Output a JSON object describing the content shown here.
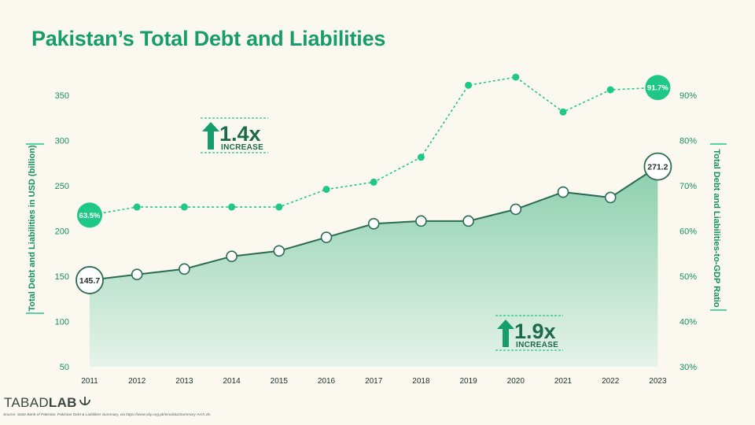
{
  "chart_data": {
    "type": "line",
    "title": "Pakistan’s Total Debt and Liabilities",
    "categories": [
      "2011",
      "2012",
      "2013",
      "2014",
      "2015",
      "2016",
      "2017",
      "2018",
      "2019",
      "2020",
      "2021",
      "2022",
      "2023"
    ],
    "series": [
      {
        "name": "Total Debt and Liabilities in USD (billion)",
        "axis": "left",
        "style": "area-line",
        "values": [
          145.7,
          152,
          158,
          172,
          178,
          193,
          208,
          211,
          211,
          224,
          243,
          237,
          271.2
        ]
      },
      {
        "name": "Total Debt and Liabilities-to-GDP Ratio",
        "axis": "right",
        "style": "dashed-line",
        "unit": "%",
        "values": [
          63.5,
          65.3,
          65.3,
          65.3,
          65.3,
          69.2,
          70.8,
          76.3,
          92.2,
          94.0,
          86.3,
          91.2,
          91.7
        ]
      }
    ],
    "ylabel": "Total Debt and Liabilities in USD (billion)",
    "ylabel_right": "Total Debt and Liabilities-to-GDP Ratio",
    "ylim": [
      50,
      350
    ],
    "ylim_right": [
      30,
      90
    ],
    "yticks": [
      "50",
      "100",
      "150",
      "200",
      "250",
      "300",
      "350"
    ],
    "yticks_right": [
      "30%",
      "40%",
      "50%",
      "60%",
      "70%",
      "80%",
      "90%"
    ],
    "data_labels": {
      "debt_first": "145.7",
      "debt_last": "271.2",
      "ratio_first": "63.5%",
      "ratio_last": "91.7%"
    },
    "annotations": [
      {
        "value": "1.4x",
        "text": "INCREASE",
        "applies_to": "ratio"
      },
      {
        "value": "1.9x",
        "text": "INCREASE",
        "applies_to": "debt"
      }
    ]
  },
  "footer": {
    "logo_left": "TABAD",
    "logo_right": "LAB",
    "source": "Source: State Bank of Pakistan, Pakistan Debt & Liabilities Summary, via https://www.sbp.org.pk/ecodata/Summary-Arch.xls."
  },
  "colors": {
    "primary": "#179c6b",
    "accent": "#20c887",
    "line": "#2a6b52",
    "area_top": "#8ccfae",
    "area_bottom": "#e6f3ea",
    "background": "#fbf8f0"
  }
}
